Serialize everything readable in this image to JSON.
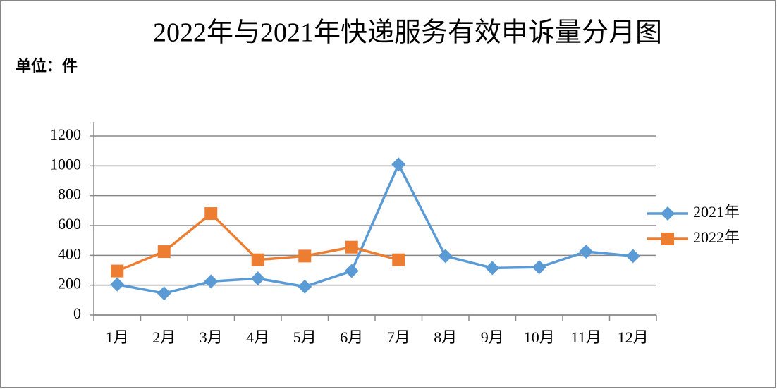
{
  "chart_data": {
    "type": "line",
    "title": "2022年与2021年快递服务有效申诉量分月图",
    "unit_label": "单位：件",
    "categories": [
      "1月",
      "2月",
      "3月",
      "4月",
      "5月",
      "6月",
      "7月",
      "8月",
      "9月",
      "10月",
      "11月",
      "12月"
    ],
    "series": [
      {
        "name": "2021年",
        "color": "#5b9bd5",
        "marker": "diamond",
        "values": [
          205,
          145,
          225,
          245,
          190,
          295,
          1010,
          395,
          315,
          320,
          425,
          395
        ]
      },
      {
        "name": "2022年",
        "color": "#ed7d31",
        "marker": "square",
        "values": [
          295,
          425,
          680,
          370,
          395,
          455,
          370,
          null,
          null,
          null,
          null,
          null
        ]
      }
    ],
    "ylim": [
      0,
      1200
    ],
    "yticks": [
      0,
      200,
      400,
      600,
      800,
      1000,
      1200
    ],
    "grid": true,
    "legend": "right"
  }
}
